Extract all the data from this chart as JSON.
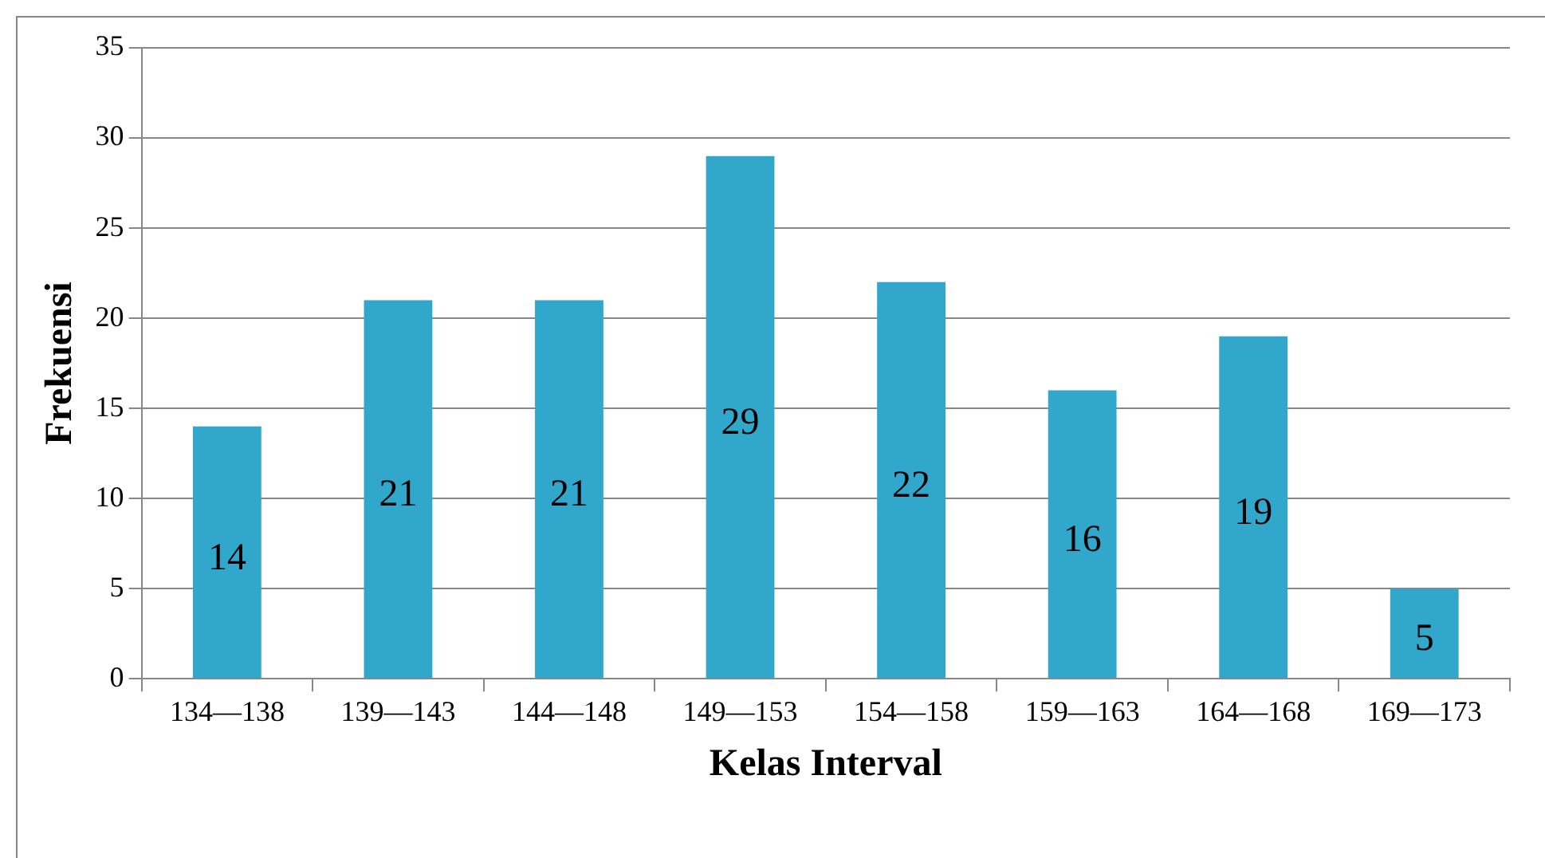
{
  "chart_data": {
    "type": "bar",
    "xlabel": "Kelas Interval",
    "ylabel": "Frekuensi",
    "categories": [
      "134—138",
      "139—143",
      "144—148",
      "149—153",
      "154—158",
      "159—163",
      "164—168",
      "169—173"
    ],
    "values": [
      14,
      21,
      21,
      29,
      22,
      16,
      19,
      5
    ],
    "color": "#31a7cb",
    "ylim": [
      0,
      35
    ],
    "yticks": [
      0,
      5,
      10,
      15,
      20,
      25,
      30,
      35
    ],
    "grid": "y",
    "legend": false,
    "data_labels": true
  }
}
